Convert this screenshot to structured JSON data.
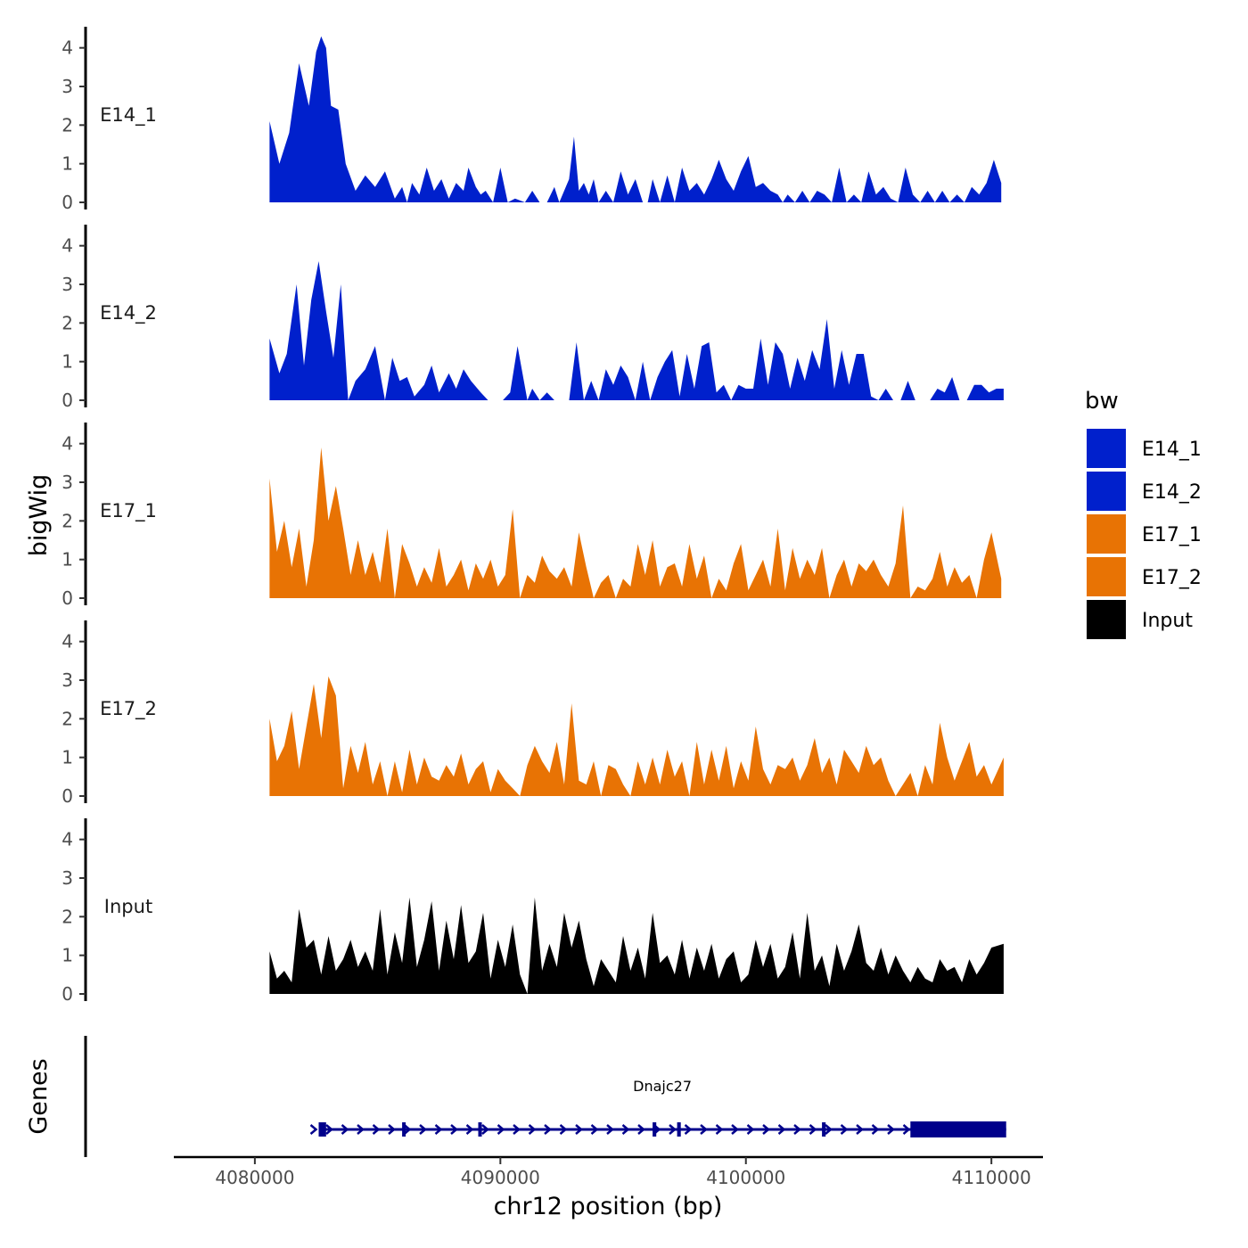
{
  "chart_data": {
    "type": "area",
    "y_axis_title": "bigWig",
    "genes_axis_title": "Genes",
    "x_axis_title": "chr12 position (bp)",
    "xlim": [
      4076700,
      4112100
    ],
    "x_ticks": [
      4080000,
      4090000,
      4100000,
      4110000
    ],
    "x_tick_labels": [
      "4080000",
      "4090000",
      "4100000",
      "4110000"
    ],
    "ylim": [
      0,
      4.5
    ],
    "y_ticks": [
      0,
      1,
      2,
      3,
      4
    ],
    "y_tick_labels": [
      "0",
      "1",
      "2",
      "3",
      "4"
    ],
    "legend": {
      "title": "bw",
      "position": "right",
      "entries": [
        {
          "label": "E14_1",
          "color": "#0020CC"
        },
        {
          "label": "E14_2",
          "color": "#0020CC"
        },
        {
          "label": "E17_1",
          "color": "#E87304"
        },
        {
          "label": "E17_2",
          "color": "#E87304"
        },
        {
          "label": "Input",
          "color": "#000000"
        }
      ]
    },
    "series": [
      {
        "name": "E14_1",
        "color": "#0020CC",
        "x": [
          4080600,
          4081000,
          4081400,
          4081800,
          4082200,
          4082500,
          4082700,
          4082900,
          4083100,
          4083400,
          4083700,
          4084100,
          4084500,
          4084900,
          4085300,
          4085700,
          4086000,
          4086200,
          4086400,
          4086700,
          4087000,
          4087300,
          4087600,
          4087900,
          4088200,
          4088500,
          4088700,
          4089000,
          4089200,
          4089400,
          4089700,
          4090000,
          4090300,
          4090600,
          4091000,
          4091300,
          4091600,
          4091900,
          4092200,
          4092400,
          4092600,
          4092800,
          4093000,
          4093200,
          4093400,
          4093600,
          4093800,
          4094000,
          4094300,
          4094600,
          4094900,
          4095200,
          4095500,
          4095800,
          4096000,
          4096200,
          4096500,
          4096800,
          4097100,
          4097400,
          4097700,
          4098000,
          4098300,
          4098600,
          4098900,
          4099200,
          4099500,
          4099800,
          4100100,
          4100400,
          4100700,
          4101000,
          4101300,
          4101500,
          4101700,
          4102000,
          4102300,
          4102600,
          4102900,
          4103200,
          4103500,
          4103800,
          4104100,
          4104400,
          4104700,
          4105000,
          4105300,
          4105600,
          4105900,
          4106200,
          4106500,
          4106800,
          4107100,
          4107400,
          4107700,
          4108000,
          4108300,
          4108600,
          4108900,
          4109200,
          4109500,
          4109800,
          4110100,
          4110400
        ],
        "y": [
          2.1,
          1.0,
          1.8,
          3.6,
          2.5,
          3.9,
          4.3,
          4.0,
          2.5,
          2.4,
          1.0,
          0.3,
          0.7,
          0.4,
          0.8,
          0.1,
          0.4,
          0.0,
          0.5,
          0.2,
          0.9,
          0.3,
          0.6,
          0.1,
          0.5,
          0.3,
          0.9,
          0.4,
          0.2,
          0.3,
          0.0,
          0.9,
          0.0,
          0.1,
          0.0,
          0.3,
          0.0,
          0.0,
          0.4,
          0.0,
          0.3,
          0.6,
          1.7,
          0.3,
          0.5,
          0.2,
          0.6,
          0.0,
          0.3,
          0.0,
          0.8,
          0.2,
          0.6,
          0.0,
          0.0,
          0.6,
          0.0,
          0.7,
          0.0,
          0.9,
          0.3,
          0.5,
          0.2,
          0.6,
          1.1,
          0.6,
          0.3,
          0.8,
          1.2,
          0.4,
          0.5,
          0.3,
          0.2,
          0.0,
          0.2,
          0.0,
          0.3,
          0.0,
          0.3,
          0.2,
          0.0,
          0.9,
          0.0,
          0.2,
          0.0,
          0.8,
          0.2,
          0.4,
          0.1,
          0.0,
          0.9,
          0.2,
          0.0,
          0.3,
          0.0,
          0.3,
          0.0,
          0.2,
          0.0,
          0.4,
          0.2,
          0.5,
          1.1,
          0.5
        ]
      },
      {
        "name": "E14_2",
        "color": "#0020CC",
        "x": [
          4080600,
          4081000,
          4081300,
          4081700,
          4082000,
          4082300,
          4082600,
          4082900,
          4083200,
          4083500,
          4083800,
          4084100,
          4084500,
          4084900,
          4085300,
          4085600,
          4085900,
          4086200,
          4086500,
          4086900,
          4087200,
          4087500,
          4087900,
          4088200,
          4088500,
          4088800,
          4089200,
          4089500,
          4089800,
          4090100,
          4090400,
          4090700,
          4091100,
          4091300,
          4091600,
          4091900,
          4092200,
          4092500,
          4092800,
          4093100,
          4093400,
          4093700,
          4094000,
          4094300,
          4094600,
          4094900,
          4095200,
          4095500,
          4095800,
          4096100,
          4096400,
          4096700,
          4097000,
          4097300,
          4097600,
          4097900,
          4098200,
          4098500,
          4098800,
          4099100,
          4099400,
          4099700,
          4100000,
          4100300,
          4100600,
          4100900,
          4101200,
          4101500,
          4101800,
          4102100,
          4102400,
          4102700,
          4103000,
          4103300,
          4103600,
          4103900,
          4104200,
          4104500,
          4104800,
          4105100,
          4105400,
          4105700,
          4106000,
          4106300,
          4106600,
          4106900,
          4107200,
          4107500,
          4107800,
          4108100,
          4108400,
          4108700,
          4109000,
          4109300,
          4109600,
          4109900,
          4110200,
          4110500
        ],
        "y": [
          1.6,
          0.7,
          1.2,
          3.0,
          0.9,
          2.6,
          3.6,
          2.3,
          1.1,
          3.0,
          0.0,
          0.5,
          0.8,
          1.4,
          0.0,
          1.1,
          0.5,
          0.6,
          0.1,
          0.4,
          0.9,
          0.2,
          0.7,
          0.3,
          0.8,
          0.5,
          0.2,
          0.0,
          0.0,
          0.0,
          0.2,
          1.4,
          0.0,
          0.3,
          0.0,
          0.2,
          0.0,
          0.0,
          0.0,
          1.5,
          0.0,
          0.5,
          0.0,
          0.8,
          0.4,
          0.9,
          0.6,
          0.0,
          1.0,
          0.0,
          0.6,
          1.0,
          1.3,
          0.1,
          1.2,
          0.3,
          1.4,
          1.5,
          0.2,
          0.4,
          0.0,
          0.4,
          0.3,
          0.3,
          1.6,
          0.4,
          1.5,
          1.2,
          0.3,
          1.1,
          0.5,
          1.3,
          0.8,
          2.1,
          0.3,
          1.3,
          0.4,
          1.2,
          1.2,
          0.1,
          0.0,
          0.3,
          0.0,
          0.0,
          0.5,
          0.0,
          0.0,
          0.0,
          0.3,
          0.2,
          0.6,
          0.0,
          0.0,
          0.4,
          0.4,
          0.2,
          0.3,
          0.3
        ]
      },
      {
        "name": "E17_1",
        "color": "#E87304",
        "x": [
          4080600,
          4080900,
          4081200,
          4081500,
          4081800,
          4082100,
          4082400,
          4082700,
          4083000,
          4083300,
          4083600,
          4083900,
          4084200,
          4084500,
          4084800,
          4085100,
          4085400,
          4085700,
          4086000,
          4086300,
          4086600,
          4086900,
          4087200,
          4087500,
          4087800,
          4088100,
          4088400,
          4088700,
          4089000,
          4089300,
          4089600,
          4089900,
          4090200,
          4090500,
          4090800,
          4091100,
          4091400,
          4091700,
          4092000,
          4092300,
          4092600,
          4092900,
          4093200,
          4093500,
          4093800,
          4094100,
          4094400,
          4094700,
          4095000,
          4095300,
          4095600,
          4095900,
          4096200,
          4096500,
          4096800,
          4097100,
          4097400,
          4097700,
          4098000,
          4098300,
          4098600,
          4098900,
          4099200,
          4099500,
          4099800,
          4100100,
          4100400,
          4100700,
          4101000,
          4101300,
          4101600,
          4101900,
          4102200,
          4102500,
          4102800,
          4103100,
          4103400,
          4103700,
          4104000,
          4104300,
          4104600,
          4104900,
          4105200,
          4105500,
          4105800,
          4106100,
          4106400,
          4106700,
          4107000,
          4107300,
          4107600,
          4107900,
          4108200,
          4108500,
          4108800,
          4109100,
          4109400,
          4109700,
          4110000,
          4110400
        ],
        "y": [
          3.1,
          1.2,
          2.0,
          0.8,
          1.8,
          0.3,
          1.5,
          3.9,
          2.0,
          2.9,
          1.8,
          0.6,
          1.5,
          0.6,
          1.2,
          0.4,
          1.8,
          0.0,
          1.4,
          0.9,
          0.3,
          0.8,
          0.4,
          1.3,
          0.3,
          0.6,
          1.0,
          0.2,
          0.9,
          0.5,
          1.0,
          0.3,
          0.6,
          2.3,
          0.0,
          0.6,
          0.4,
          1.1,
          0.7,
          0.5,
          0.8,
          0.3,
          1.7,
          0.8,
          0.0,
          0.4,
          0.6,
          0.0,
          0.5,
          0.3,
          1.4,
          0.6,
          1.5,
          0.3,
          0.8,
          0.9,
          0.3,
          1.4,
          0.5,
          1.1,
          0.0,
          0.5,
          0.2,
          0.9,
          1.4,
          0.2,
          0.6,
          1.0,
          0.3,
          1.8,
          0.2,
          1.3,
          0.5,
          1.0,
          0.6,
          1.3,
          0.0,
          0.6,
          1.0,
          0.3,
          0.9,
          0.7,
          1.0,
          0.6,
          0.3,
          0.9,
          2.4,
          0.0,
          0.3,
          0.2,
          0.5,
          1.2,
          0.3,
          0.8,
          0.4,
          0.6,
          0.0,
          1.0,
          1.7,
          0.5
        ]
      },
      {
        "name": "E17_2",
        "color": "#E87304",
        "x": [
          4080600,
          4080900,
          4081200,
          4081500,
          4081800,
          4082100,
          4082400,
          4082700,
          4083000,
          4083300,
          4083600,
          4083900,
          4084200,
          4084500,
          4084800,
          4085100,
          4085400,
          4085700,
          4086000,
          4086300,
          4086600,
          4086900,
          4087200,
          4087500,
          4087800,
          4088100,
          4088400,
          4088700,
          4089000,
          4089300,
          4089600,
          4089900,
          4090200,
          4090500,
          4090800,
          4091100,
          4091400,
          4091700,
          4092000,
          4092300,
          4092600,
          4092900,
          4093200,
          4093500,
          4093800,
          4094100,
          4094400,
          4094700,
          4095000,
          4095300,
          4095600,
          4095900,
          4096200,
          4096500,
          4096800,
          4097100,
          4097400,
          4097700,
          4098000,
          4098300,
          4098600,
          4098900,
          4099200,
          4099500,
          4099800,
          4100100,
          4100400,
          4100700,
          4101000,
          4101300,
          4101600,
          4101900,
          4102200,
          4102500,
          4102800,
          4103100,
          4103400,
          4103700,
          4104000,
          4104300,
          4104600,
          4104900,
          4105200,
          4105500,
          4105800,
          4106100,
          4106400,
          4106700,
          4107000,
          4107300,
          4107600,
          4107900,
          4108200,
          4108500,
          4108800,
          4109100,
          4109400,
          4109700,
          4110000,
          4110500
        ],
        "y": [
          2.0,
          0.9,
          1.3,
          2.2,
          0.7,
          1.8,
          2.9,
          1.5,
          3.1,
          2.6,
          0.2,
          1.3,
          0.6,
          1.4,
          0.3,
          0.9,
          0.0,
          0.9,
          0.1,
          1.2,
          0.3,
          1.0,
          0.5,
          0.4,
          0.8,
          0.5,
          1.1,
          0.3,
          0.7,
          0.9,
          0.1,
          0.7,
          0.4,
          0.2,
          0.0,
          0.8,
          1.3,
          0.9,
          0.6,
          1.4,
          0.3,
          2.4,
          0.4,
          0.3,
          0.9,
          0.0,
          0.8,
          0.7,
          0.3,
          0.0,
          0.9,
          0.3,
          1.0,
          0.3,
          1.2,
          0.5,
          0.9,
          0.0,
          1.4,
          0.3,
          1.2,
          0.4,
          1.3,
          0.2,
          0.9,
          0.4,
          1.8,
          0.7,
          0.3,
          0.8,
          0.7,
          1.0,
          0.4,
          0.8,
          1.5,
          0.6,
          1.0,
          0.3,
          1.2,
          0.9,
          0.6,
          1.3,
          0.8,
          1.0,
          0.4,
          0.0,
          0.3,
          0.6,
          0.0,
          0.8,
          0.3,
          1.9,
          1.0,
          0.4,
          0.9,
          1.4,
          0.5,
          0.8,
          0.3,
          1.0
        ]
      },
      {
        "name": "Input",
        "color": "#000000",
        "x": [
          4080600,
          4080900,
          4081200,
          4081500,
          4081800,
          4082100,
          4082400,
          4082700,
          4083000,
          4083300,
          4083600,
          4083900,
          4084200,
          4084500,
          4084800,
          4085100,
          4085400,
          4085700,
          4086000,
          4086300,
          4086600,
          4086900,
          4087200,
          4087500,
          4087800,
          4088100,
          4088400,
          4088700,
          4089000,
          4089300,
          4089600,
          4089900,
          4090200,
          4090500,
          4090800,
          4091100,
          4091400,
          4091700,
          4092000,
          4092300,
          4092600,
          4092900,
          4093200,
          4093500,
          4093800,
          4094100,
          4094400,
          4094700,
          4095000,
          4095300,
          4095600,
          4095900,
          4096200,
          4096500,
          4096800,
          4097100,
          4097400,
          4097700,
          4098000,
          4098300,
          4098600,
          4098900,
          4099200,
          4099500,
          4099800,
          4100100,
          4100400,
          4100700,
          4101000,
          4101300,
          4101600,
          4101900,
          4102200,
          4102500,
          4102800,
          4103100,
          4103400,
          4103700,
          4104000,
          4104300,
          4104600,
          4104900,
          4105200,
          4105500,
          4105800,
          4106100,
          4106400,
          4106700,
          4107000,
          4107300,
          4107600,
          4107900,
          4108200,
          4108500,
          4108800,
          4109100,
          4109400,
          4109700,
          4110000,
          4110500
        ],
        "y": [
          1.1,
          0.4,
          0.6,
          0.3,
          2.2,
          1.2,
          1.4,
          0.5,
          1.5,
          0.6,
          0.9,
          1.4,
          0.7,
          1.1,
          0.6,
          2.2,
          0.5,
          1.6,
          0.8,
          2.5,
          0.7,
          1.4,
          2.4,
          0.6,
          1.9,
          0.9,
          2.3,
          0.8,
          1.1,
          2.1,
          0.4,
          1.4,
          0.7,
          1.8,
          0.5,
          0.0,
          2.5,
          0.6,
          1.3,
          0.7,
          2.1,
          1.2,
          1.9,
          0.9,
          0.2,
          0.9,
          0.6,
          0.3,
          1.5,
          0.6,
          1.2,
          0.4,
          2.1,
          0.8,
          1.0,
          0.5,
          1.4,
          0.4,
          1.2,
          0.6,
          1.3,
          0.4,
          0.9,
          1.1,
          0.3,
          0.5,
          1.4,
          0.7,
          1.3,
          0.4,
          0.7,
          1.6,
          0.4,
          2.1,
          0.6,
          1.0,
          0.2,
          1.3,
          0.6,
          1.1,
          1.8,
          0.8,
          0.6,
          1.2,
          0.5,
          1.0,
          0.6,
          0.3,
          0.7,
          0.4,
          0.3,
          0.9,
          0.6,
          0.7,
          0.3,
          0.9,
          0.5,
          0.8,
          1.2,
          1.3
        ]
      }
    ],
    "gene_track": {
      "gene": "Dnajc27",
      "color": "#00008B",
      "strand": "+",
      "start": 4082600,
      "end": 4110600,
      "exons": [
        [
          4082600,
          4082900
        ],
        [
          4086000,
          4086100
        ],
        [
          4089100,
          4089200
        ],
        [
          4096200,
          4096350
        ],
        [
          4097200,
          4097350
        ],
        [
          4103100,
          4103250
        ],
        [
          4106700,
          4110600
        ]
      ]
    }
  }
}
